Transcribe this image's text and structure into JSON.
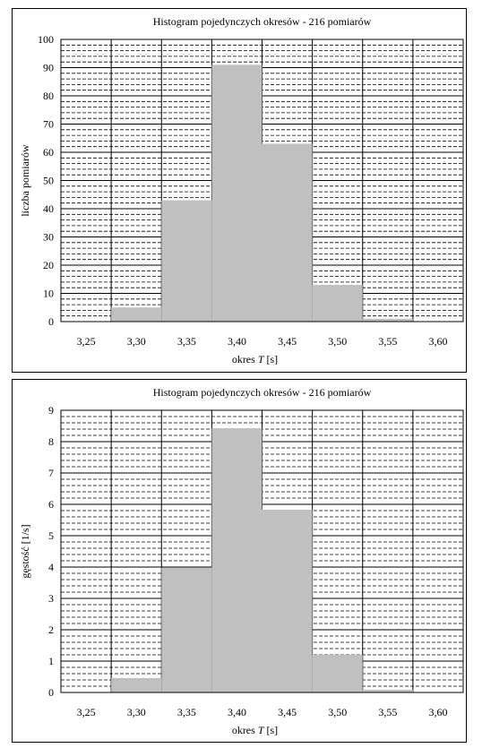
{
  "chart_data": [
    {
      "type": "bar",
      "title": "Histogram pojedynczych okresów - 216 pomiarów",
      "xlabel_prefix": "okres ",
      "xlabel_var": "T",
      "xlabel_unit": "  [s]",
      "ylabel": "liczba pomiarów",
      "xticks": [
        "3,25",
        "3,30",
        "3,35",
        "3,40",
        "3,45",
        "3,50",
        "3,55",
        "3,60"
      ],
      "xtick_values": [
        3.25,
        3.3,
        3.35,
        3.4,
        3.45,
        3.5,
        3.55,
        3.6
      ],
      "xlim": [
        3.225,
        3.625
      ],
      "ylim": [
        0,
        100
      ],
      "yticks": [
        0,
        10,
        20,
        30,
        40,
        50,
        60,
        70,
        80,
        90,
        100
      ],
      "minor_ystep": 2,
      "bin_edges": [
        3.275,
        3.325,
        3.375,
        3.425,
        3.475,
        3.525,
        3.575
      ],
      "values": [
        5,
        43,
        91,
        63,
        13,
        1
      ],
      "grid": true,
      "bar_color": "#c0c0c0"
    },
    {
      "type": "bar",
      "title": "Histogram pojedynczych okresów - 216 pomiarów",
      "xlabel_prefix": "okres ",
      "xlabel_var": "T",
      "xlabel_unit": "  [s]",
      "ylabel": "gęstość [1/s]",
      "xticks": [
        "3,25",
        "3,30",
        "3,35",
        "3,40",
        "3,45",
        "3,50",
        "3,55",
        "3,60"
      ],
      "xtick_values": [
        3.25,
        3.3,
        3.35,
        3.4,
        3.45,
        3.5,
        3.55,
        3.6
      ],
      "xlim": [
        3.225,
        3.625
      ],
      "ylim": [
        0,
        9
      ],
      "yticks": [
        0,
        1,
        2,
        3,
        4,
        5,
        6,
        7,
        8,
        9
      ],
      "minor_ystep": 0.2,
      "bin_edges": [
        3.275,
        3.325,
        3.375,
        3.425,
        3.475,
        3.525,
        3.575
      ],
      "values": [
        0.46,
        3.98,
        8.43,
        5.83,
        1.2,
        0.09
      ],
      "grid": true,
      "bar_color": "#c0c0c0"
    }
  ]
}
